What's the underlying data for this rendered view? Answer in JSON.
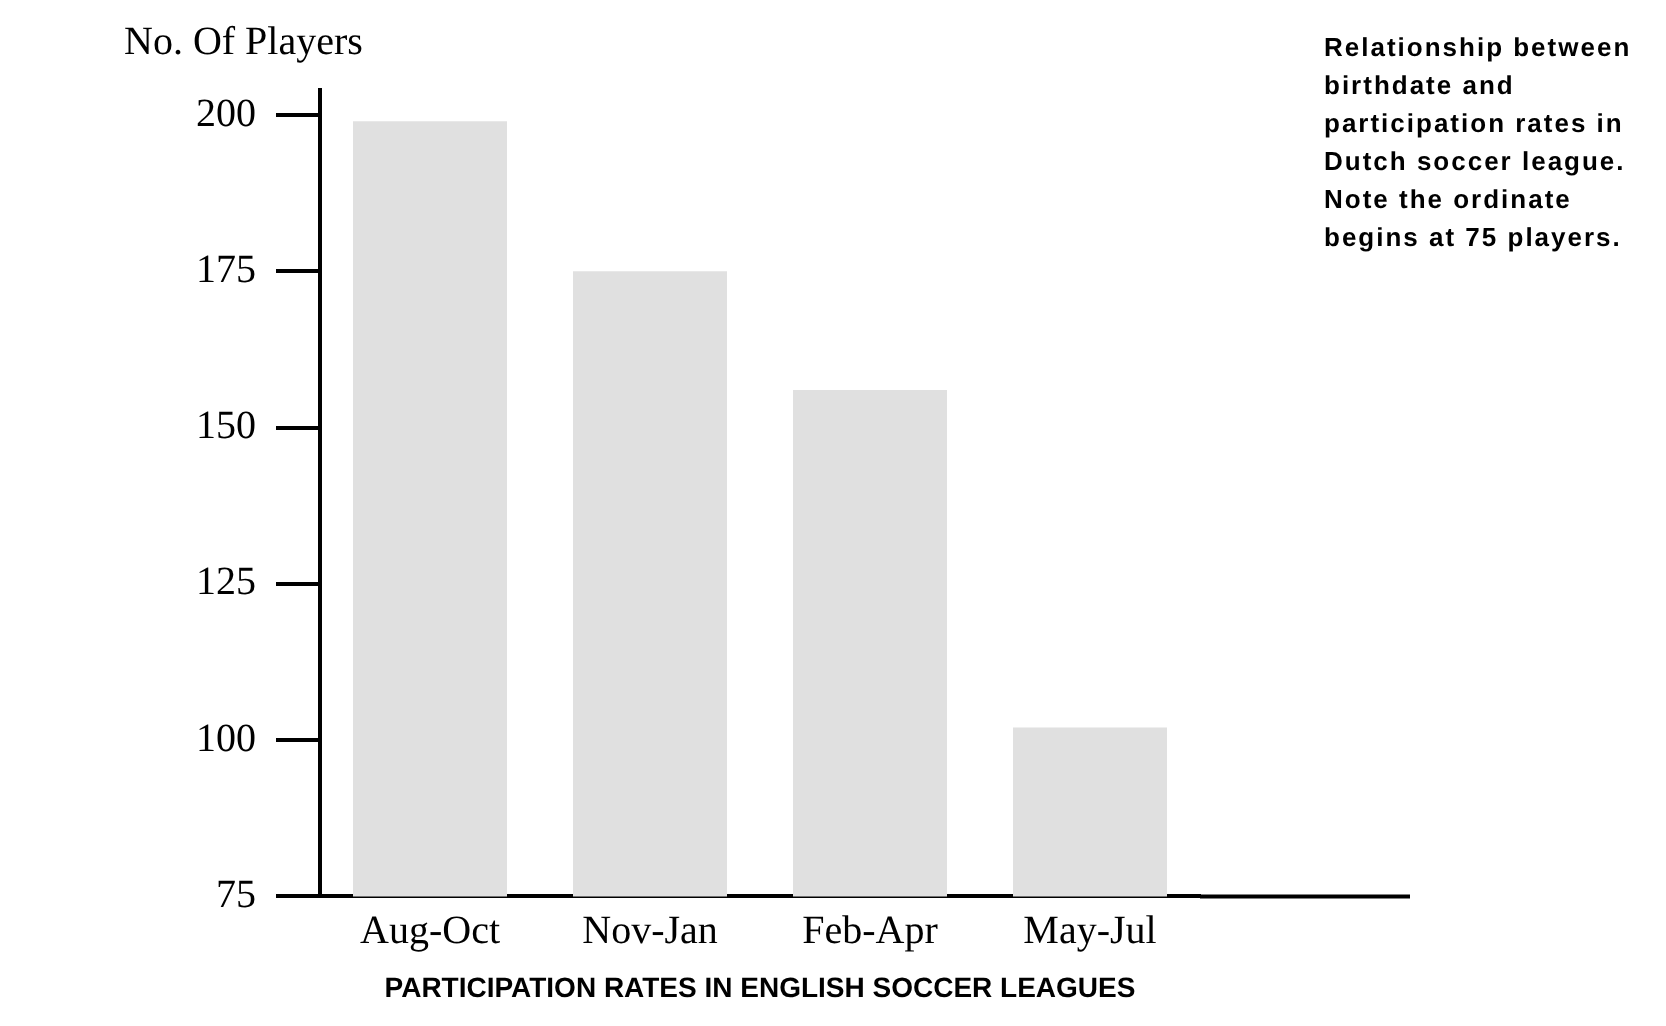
{
  "chart_data": {
    "type": "bar",
    "ylabel": "No. Of Players",
    "xlabel": "PARTICIPATION RATES IN ENGLISH SOCCER LEAGUES",
    "annotations": [
      "Relationship between birthdate and participation rates in Dutch soccer league. Note the ordinate begins at 75 players."
    ],
    "categories": [
      "Aug-Oct",
      "Nov-Jan",
      "Feb-Apr",
      "May-Jul"
    ],
    "values": [
      199,
      175,
      156,
      102
    ],
    "color": "#e0e0e0",
    "ylim": [
      75,
      204
    ],
    "yticks": [
      75,
      100,
      125,
      150,
      175,
      200
    ],
    "grid": false,
    "legend": false
  }
}
